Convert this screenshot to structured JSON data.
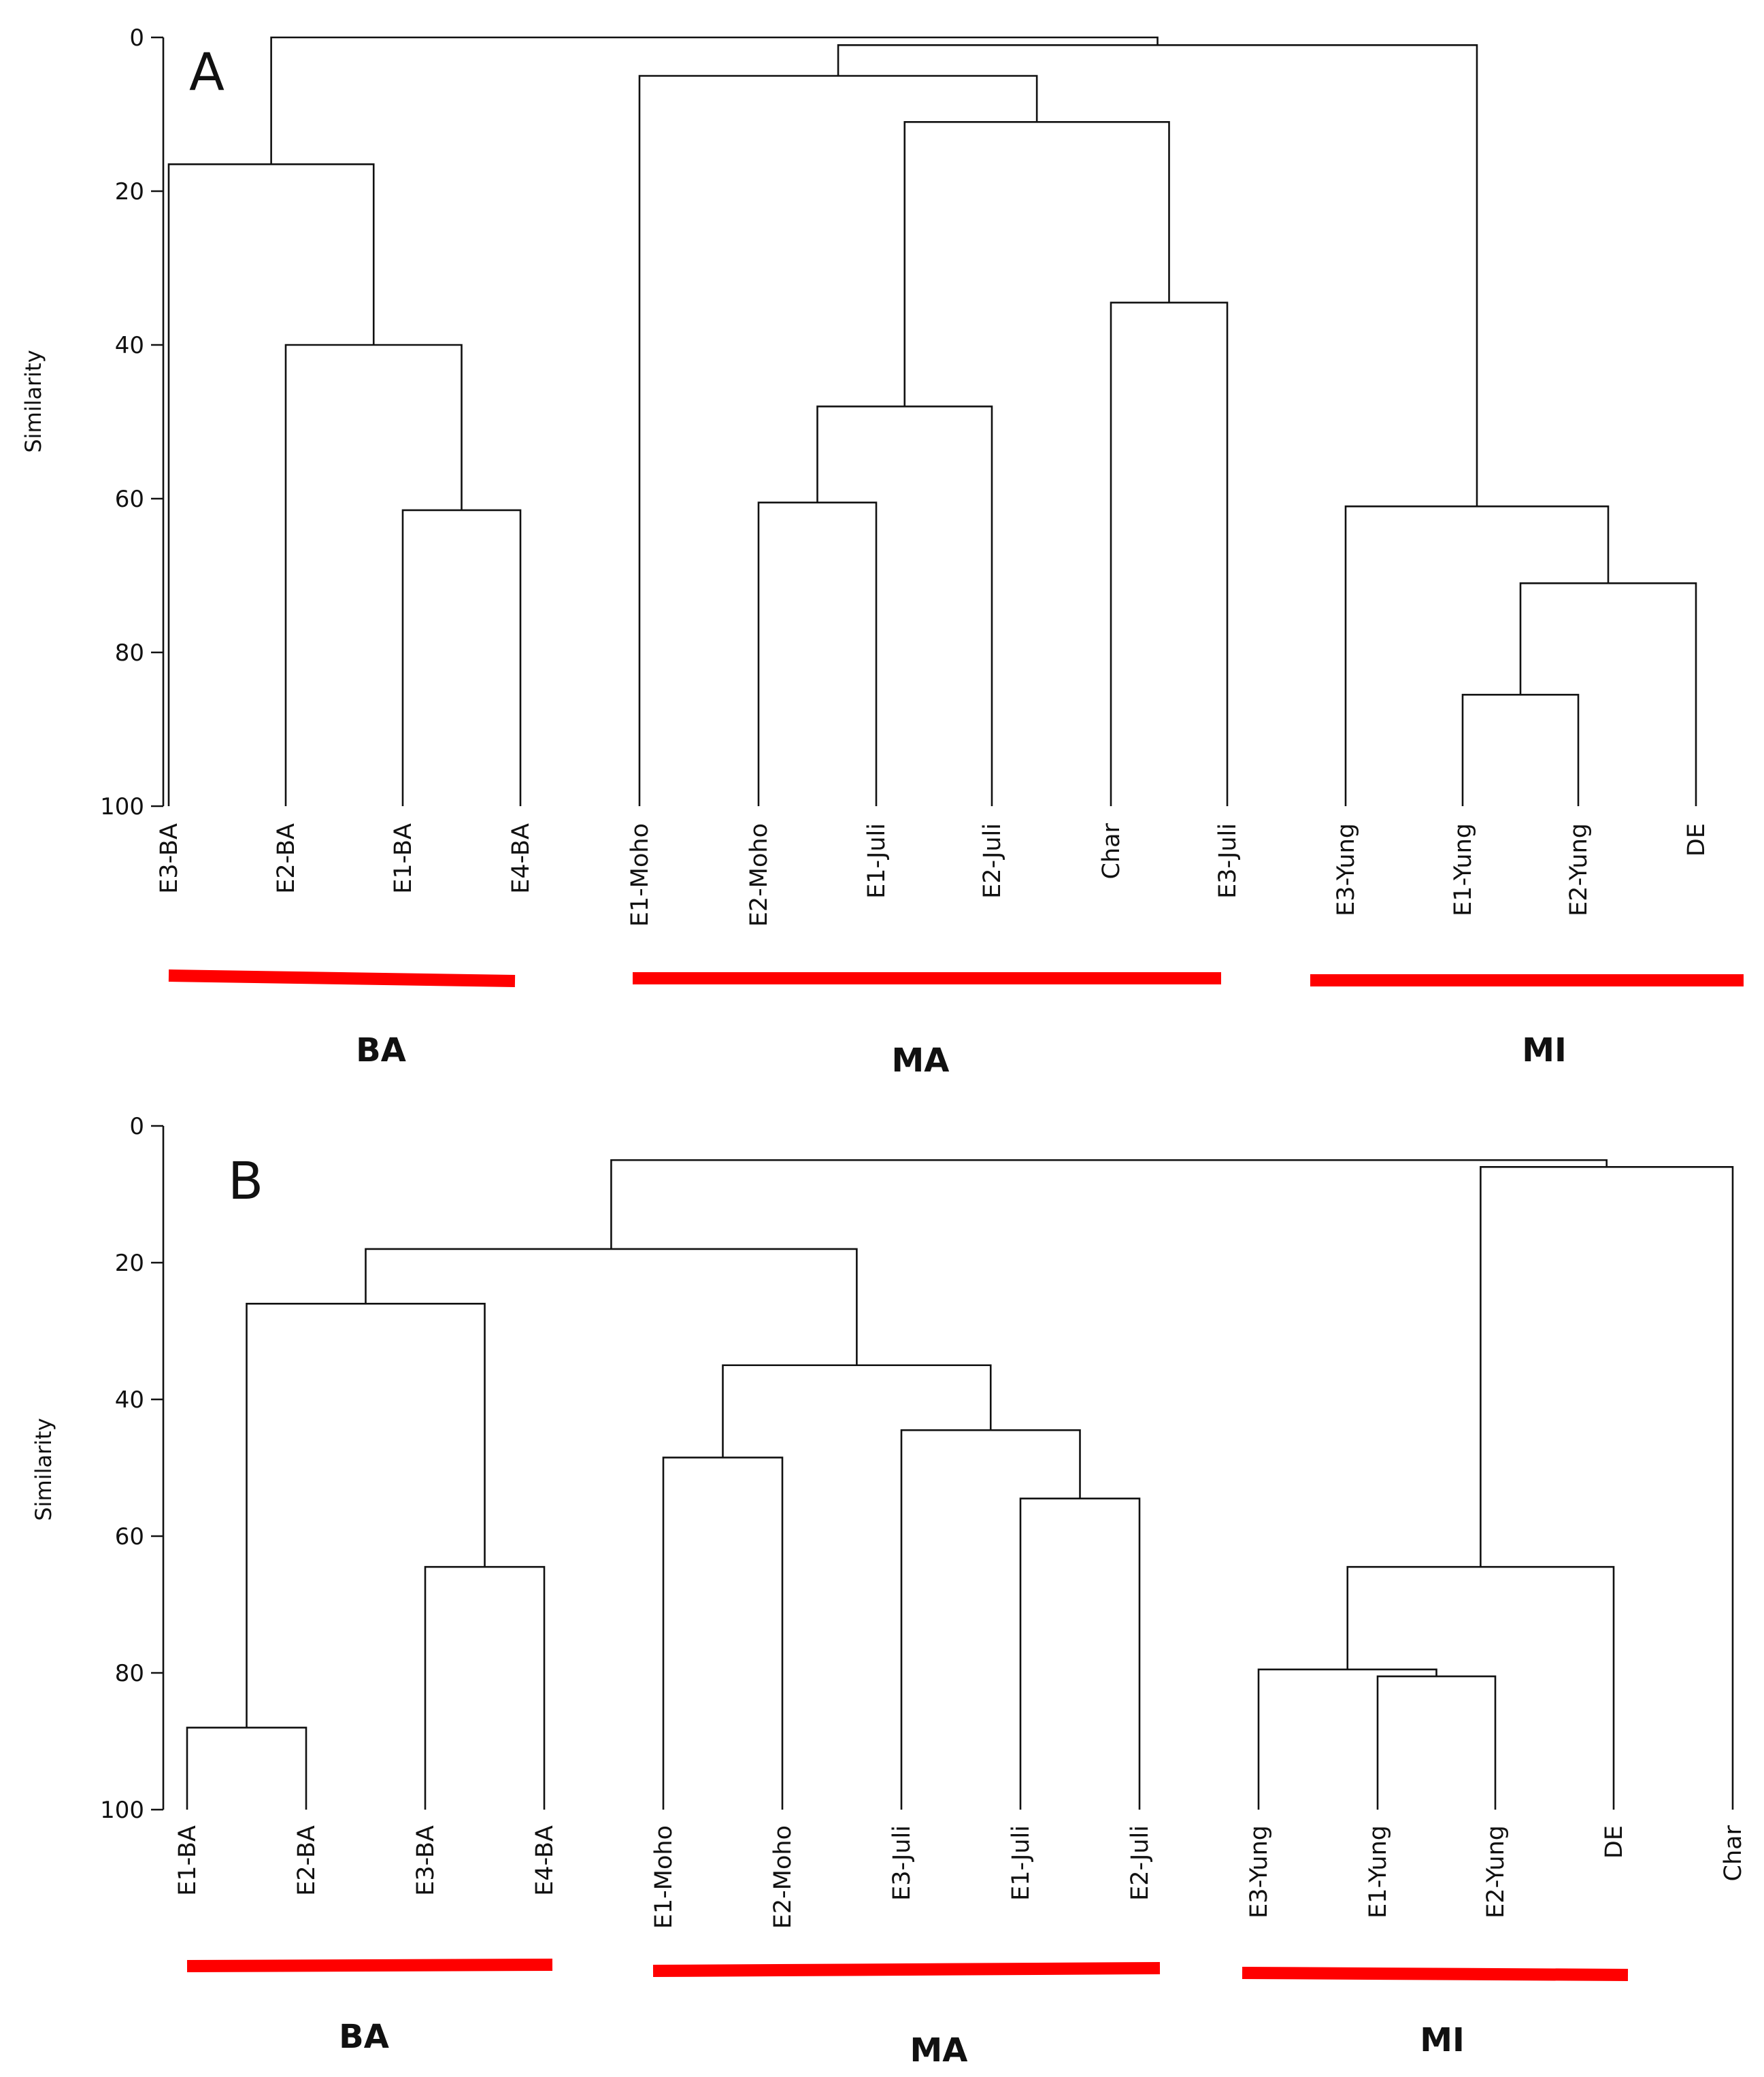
{
  "chart_data": [
    {
      "type": "dendrogram",
      "panel": "A",
      "ylabel": "Similarity",
      "yticks": [
        0,
        20,
        40,
        60,
        80,
        100
      ],
      "ylim": [
        0,
        100
      ],
      "leaves": [
        "E3-BA",
        "E2-BA",
        "E1-BA",
        "E4-BA",
        "E1-Moho",
        "E2-Moho",
        "E1-Juli",
        "E2-Juli",
        "Char",
        "E3-Juli",
        "E3-Yung",
        "E1-Yung",
        "E2-Yung",
        "DE"
      ],
      "merges": [
        {
          "left": "E1-BA",
          "right": "E4-BA",
          "similarity": 61.5
        },
        {
          "left": "E2-BA",
          "right": "[E1-BA, E4-BA]",
          "similarity": 40
        },
        {
          "left": "E3-BA",
          "right": "[E2-BA, E1-BA, E4-BA]",
          "similarity": 16.5
        },
        {
          "left": "E2-Moho",
          "right": "E1-Juli",
          "similarity": 60.5
        },
        {
          "left": "[E2-Moho, E1-Juli]",
          "right": "E2-Juli",
          "similarity": 48
        },
        {
          "left": "Char",
          "right": "E3-Juli",
          "similarity": 34.5
        },
        {
          "left": "[E2-Moho, E1-Juli, E2-Juli]",
          "right": "[Char, E3-Juli]",
          "similarity": 11
        },
        {
          "left": "E1-Moho",
          "right": "[E2-Moho ... E3-Juli]",
          "similarity": 5
        },
        {
          "left": "E1-Yung",
          "right": "E2-Yung",
          "similarity": 85.5
        },
        {
          "left": "[E1-Yung, E2-Yung]",
          "right": "DE",
          "similarity": 71
        },
        {
          "left": "E3-Yung",
          "right": "[E1-Yung, E2-Yung, DE]",
          "similarity": 61
        },
        {
          "left": "MA cluster",
          "right": "MI cluster",
          "similarity": 1
        },
        {
          "left": "BA cluster",
          "right": "MA+MI cluster",
          "similarity": 0
        }
      ],
      "groups": [
        {
          "label": "BA",
          "leaves": [
            "E3-BA",
            "E2-BA",
            "E1-BA",
            "E4-BA"
          ]
        },
        {
          "label": "MA",
          "leaves": [
            "E1-Moho",
            "E2-Moho",
            "E1-Juli",
            "E2-Juli",
            "Char",
            "E3-Juli"
          ]
        },
        {
          "label": "MI",
          "leaves": [
            "E3-Yung",
            "E1-Yung",
            "E2-Yung",
            "DE"
          ]
        }
      ]
    },
    {
      "type": "dendrogram",
      "panel": "B",
      "ylabel": "Similarity",
      "yticks": [
        0,
        20,
        40,
        60,
        80,
        100
      ],
      "ylim": [
        0,
        100
      ],
      "leaves": [
        "E1-BA",
        "E2-BA",
        "E3-BA",
        "E4-BA",
        "E1-Moho",
        "E2-Moho",
        "E3-Juli",
        "E1-Juli",
        "E2-Juli",
        "E3-Yung",
        "E1-Yung",
        "E2-Yung",
        "DE",
        "Char"
      ],
      "merges": [
        {
          "left": "E1-BA",
          "right": "E2-BA",
          "similarity": 88
        },
        {
          "left": "E3-BA",
          "right": "E4-BA",
          "similarity": 64.5
        },
        {
          "left": "[E1-BA, E2-BA]",
          "right": "[E3-BA, E4-BA]",
          "similarity": 26
        },
        {
          "left": "E1-Moho",
          "right": "E2-Moho",
          "similarity": 48.5
        },
        {
          "left": "E1-Juli",
          "right": "E2-Juli",
          "similarity": 54.5
        },
        {
          "left": "E3-Juli",
          "right": "[E1-Juli, E2-Juli]",
          "similarity": 44.5
        },
        {
          "left": "[E1-Moho, E2-Moho]",
          "right": "[E3-Juli, E1-Juli, E2-Juli]",
          "similarity": 35
        },
        {
          "left": "BA cluster",
          "right": "MA cluster",
          "similarity": 18
        },
        {
          "left": "E1-Yung",
          "right": "E2-Yung",
          "similarity": 80.5
        },
        {
          "left": "E3-Yung",
          "right": "[E1-Yung, E2-Yung]",
          "similarity": 79.5
        },
        {
          "left": "[E3-Yung, E1-Yung, E2-Yung]",
          "right": "DE",
          "similarity": 64.5
        },
        {
          "left": "MI cluster",
          "right": "Char",
          "similarity": 6
        },
        {
          "left": "BA+MA cluster",
          "right": "MI+Char cluster",
          "similarity": 5
        }
      ],
      "groups": [
        {
          "label": "BA",
          "leaves": [
            "E1-BA",
            "E2-BA",
            "E3-BA",
            "E4-BA"
          ]
        },
        {
          "label": "MA",
          "leaves": [
            "E1-Moho",
            "E2-Moho",
            "E3-Juli",
            "E1-Juli",
            "E2-Juli"
          ]
        },
        {
          "label": "MI",
          "leaves": [
            "E3-Yung",
            "E1-Yung",
            "E2-Yung",
            "DE"
          ]
        }
      ]
    }
  ]
}
